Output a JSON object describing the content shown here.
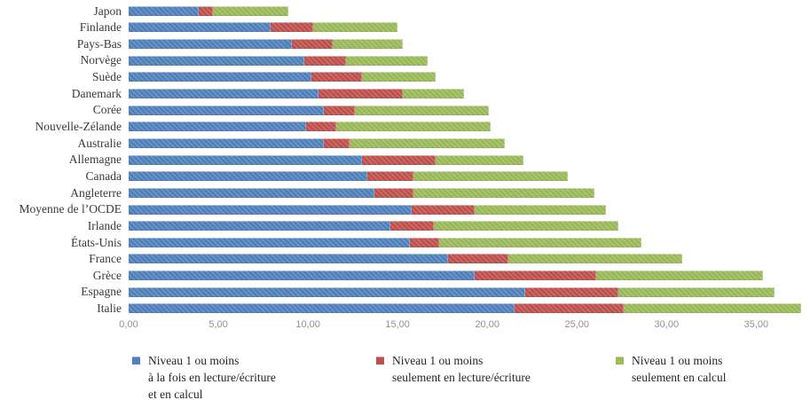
{
  "chart_data": {
    "type": "bar",
    "orientation": "horizontal",
    "stacked": true,
    "grid": false,
    "legend_position": "bottom",
    "title": "",
    "xlabel": "",
    "ylabel": "",
    "xlim": [
      0,
      38
    ],
    "x_ticks": [
      "0,00",
      "5,00",
      "10,00",
      "15,00",
      "20,00",
      "25,00",
      "30,00",
      "35,00"
    ],
    "x_tick_values": [
      0,
      5,
      10,
      15,
      20,
      25,
      30,
      35
    ],
    "categories": [
      "Japon",
      "Finlande",
      "Pays-Bas",
      "Norvège",
      "Suède",
      "Danemark",
      "Corée",
      "Nouvelle-Zélande",
      "Australie",
      "Allemagne",
      "Canada",
      "Angleterre",
      "Moyenne de l’OCDE",
      "Irlande",
      "États-Unis",
      "France",
      "Grèce",
      "Espagne",
      "Italie"
    ],
    "series": [
      {
        "name": "Niveau 1 ou moins à la fois en lecture/écriture et en calcul",
        "color": "#4F81BD",
        "values": [
          3.9,
          7.9,
          9.1,
          9.8,
          10.2,
          10.6,
          10.9,
          9.9,
          10.9,
          13.0,
          13.3,
          13.7,
          15.8,
          14.6,
          15.7,
          17.8,
          19.3,
          22.1,
          21.5
        ]
      },
      {
        "name": "Niveau 1 ou moins seulement en lecture/écriture",
        "color": "#C0504D",
        "values": [
          0.8,
          2.4,
          2.3,
          2.3,
          2.8,
          4.7,
          1.7,
          1.7,
          1.4,
          4.1,
          2.6,
          2.2,
          3.5,
          2.4,
          1.6,
          3.4,
          6.8,
          5.2,
          6.1
        ]
      },
      {
        "name": "Niveau 1 ou moins seulement en calcul",
        "color": "#9BBB59",
        "values": [
          4.2,
          4.7,
          3.9,
          4.6,
          4.1,
          3.4,
          7.5,
          8.6,
          8.7,
          4.9,
          8.6,
          10.1,
          7.3,
          10.3,
          11.3,
          9.7,
          9.3,
          8.7,
          9.9
        ]
      }
    ]
  },
  "legend": {
    "items": [
      {
        "color": "#4F81BD",
        "lines": [
          "Niveau 1 ou moins",
          "à la fois en lecture/écriture",
          "et en calcul"
        ]
      },
      {
        "color": "#C0504D",
        "lines": [
          "Niveau 1 ou moins",
          "seulement en lecture/écriture"
        ]
      },
      {
        "color": "#9BBB59",
        "lines": [
          "Niveau 1 ou moins",
          "seulement en calcul"
        ]
      }
    ]
  },
  "colors": {
    "series_blue": "#4F81BD",
    "series_red": "#C0504D",
    "series_green": "#9BBB59",
    "tick_text": "#919191",
    "label_text": "#3a3a3a"
  }
}
